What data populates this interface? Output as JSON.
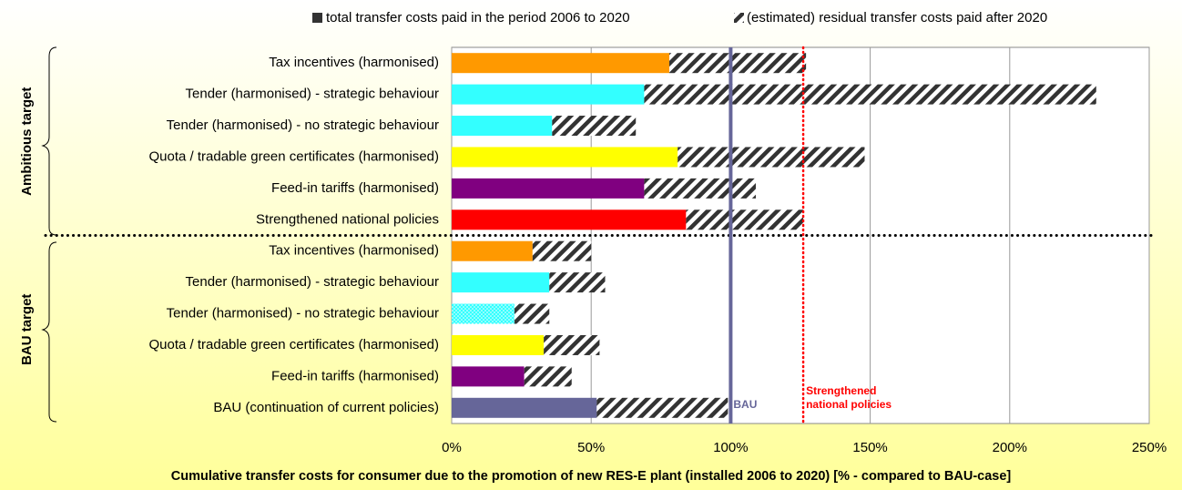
{
  "chart_data": {
    "type": "stacked-barh",
    "groups": [
      {
        "name": "Ambitious target",
        "color": "#ff0000",
        "categories": [
          "Tax incentives (harmonised)",
          "Tender (harmonised) - strategic behaviour",
          "Tender (harmonised) - no strategic behaviour",
          "Quota / tradable green certificates (harmonised)",
          "Feed-in tariffs (harmonised)",
          "Strengthened national policies"
        ]
      },
      {
        "name": "BAU target",
        "color": "#666699",
        "categories": [
          "Tax incentives (harmonised)",
          "Tender (harmonised) - strategic behaviour",
          "Tender (harmonised) - no strategic behaviour",
          "Quota / tradable green certificates (harmonised)",
          "Feed-in tariffs (harmonised)",
          "BAU (continuation of current policies)"
        ]
      }
    ],
    "series": [
      {
        "name": "total transfer costs paid in the period 2006 to 2020",
        "color": "#333333",
        "colors": [
          "#ff9900",
          "#33ffff",
          "#33ffff",
          "#ffff00",
          "#800080",
          "#ff0000",
          "#ff9900",
          "#33ffff",
          "#33ffff",
          "#ffff00",
          "#800080",
          "#666699"
        ],
        "fill_patterns": [
          "solid",
          "solid",
          "solid",
          "solid",
          "solid",
          "solid",
          "solid",
          "solid",
          "dotted",
          "solid",
          "solid",
          "solid"
        ],
        "values": [
          78,
          69,
          36,
          81,
          69,
          84,
          29,
          35,
          22.5,
          33,
          26,
          52
        ]
      },
      {
        "name": "(estimated) residual transfer costs paid after 2020",
        "color": "hatched",
        "values": [
          49,
          162,
          30,
          67,
          40,
          42,
          21,
          20,
          12.5,
          20,
          17,
          47
        ]
      }
    ],
    "reference_lines": [
      {
        "value": 100,
        "label": "BAU",
        "color": "#666699",
        "style": "solid"
      },
      {
        "value": 126,
        "label": "Strengthened national policies",
        "color": "#ff0000",
        "style": "dotted"
      }
    ],
    "x_label": "Cumulative transfer costs for consumer due to the promotion of new RES-E plant (installed 2006 to 2020) [% - compared to BAU-case]",
    "xlim": [
      0,
      250
    ],
    "xticks": [
      {
        "value": 0,
        "label": "0%"
      },
      {
        "value": 50,
        "label": "50%"
      },
      {
        "value": 100,
        "label": "100%"
      },
      {
        "value": 150,
        "label": "150%"
      },
      {
        "value": 200,
        "label": "200%"
      },
      {
        "value": 250,
        "label": "250%"
      }
    ],
    "grid": true,
    "legend": "top"
  }
}
